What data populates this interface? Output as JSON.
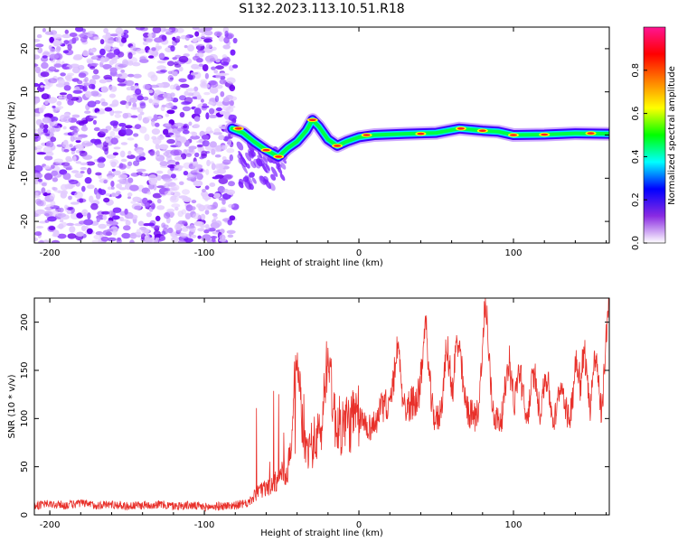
{
  "title": "S132.2023.113.10.51.R18",
  "colors": {
    "snr_line": "#e8302a",
    "axis": "#000000",
    "background": "#ffffff"
  },
  "chart_data": [
    {
      "type": "heatmap",
      "name": "spectrogram",
      "xlabel": "Height of straight line (km)",
      "ylabel": "Frequency (Hz)",
      "xlim": [
        -210,
        162
      ],
      "ylim": [
        -25,
        25
      ],
      "xticks": [
        -200,
        -100,
        0,
        100
      ],
      "yticks": [
        -20,
        -10,
        0,
        10,
        20
      ],
      "noise_region_x": [
        -210,
        -80
      ],
      "signal_track": [
        {
          "x": -82,
          "y": 1.5
        },
        {
          "x": -75,
          "y": 0.5
        },
        {
          "x": -68,
          "y": -1.5
        },
        {
          "x": -60,
          "y": -3.5
        },
        {
          "x": -52,
          "y": -5
        },
        {
          "x": -46,
          "y": -3
        },
        {
          "x": -40,
          "y": -1.5
        },
        {
          "x": -34,
          "y": 1
        },
        {
          "x": -30,
          "y": 3.5
        },
        {
          "x": -26,
          "y": 2
        },
        {
          "x": -20,
          "y": -1
        },
        {
          "x": -14,
          "y": -2.5
        },
        {
          "x": -8,
          "y": -1.5
        },
        {
          "x": 0,
          "y": -0.5
        },
        {
          "x": 10,
          "y": 0
        },
        {
          "x": 30,
          "y": 0.3
        },
        {
          "x": 50,
          "y": 0.5
        },
        {
          "x": 65,
          "y": 1.5
        },
        {
          "x": 80,
          "y": 1
        },
        {
          "x": 90,
          "y": 0.8
        },
        {
          "x": 100,
          "y": 0
        },
        {
          "x": 120,
          "y": 0.1
        },
        {
          "x": 140,
          "y": 0.4
        },
        {
          "x": 162,
          "y": 0.3
        }
      ],
      "colorbar": {
        "label": "Normalized spectral amplitude",
        "range": [
          0.0,
          1.0
        ],
        "ticks": [
          "0.0",
          "0.2",
          "0.4",
          "0.6",
          "0.8"
        ],
        "colormap": [
          "#ffffff",
          "#8a2be2",
          "#0000ff",
          "#00ffff",
          "#00ff00",
          "#ffff00",
          "#ff8000",
          "#ff0000",
          "#ff1493"
        ]
      }
    },
    {
      "type": "line",
      "name": "snr",
      "xlabel": "Height of straight line (km)",
      "ylabel": "SNR (10 * v/v)",
      "xlim": [
        -210,
        162
      ],
      "ylim": [
        0,
        225
      ],
      "xticks": [
        -200,
        -100,
        0,
        100
      ],
      "yticks": [
        0,
        50,
        100,
        150,
        200
      ],
      "series": [
        {
          "name": "SNR",
          "points": [
            [
              -210,
              10
            ],
            [
              -200,
              11
            ],
            [
              -190,
              10
            ],
            [
              -180,
              12
            ],
            [
              -170,
              10
            ],
            [
              -160,
              11
            ],
            [
              -150,
              9
            ],
            [
              -140,
              10
            ],
            [
              -130,
              11
            ],
            [
              -120,
              9
            ],
            [
              -110,
              10
            ],
            [
              -100,
              8
            ],
            [
              -90,
              9
            ],
            [
              -80,
              10
            ],
            [
              -72,
              12
            ],
            [
              -66,
              22
            ],
            [
              -60,
              28
            ],
            [
              -54,
              35
            ],
            [
              -48,
              45
            ],
            [
              -44,
              50
            ],
            [
              -40,
              55
            ],
            [
              -36,
              62
            ],
            [
              -32,
              70
            ],
            [
              -28,
              78
            ],
            [
              -24,
              80
            ],
            [
              -20,
              85
            ],
            [
              -16,
              90
            ],
            [
              -12,
              92
            ],
            [
              -8,
              95
            ],
            [
              -4,
              98
            ],
            [
              0,
              100
            ],
            [
              4,
              95
            ],
            [
              8,
              90
            ],
            [
              12,
              100
            ],
            [
              16,
              115
            ],
            [
              20,
              110
            ],
            [
              24,
              95
            ],
            [
              28,
              100
            ],
            [
              32,
              112
            ],
            [
              36,
              120
            ],
            [
              40,
              110
            ],
            [
              44,
              105
            ],
            [
              48,
              100
            ],
            [
              52,
              98
            ],
            [
              56,
              102
            ],
            [
              60,
              110
            ],
            [
              64,
              108
            ],
            [
              68,
              112
            ],
            [
              72,
              105
            ],
            [
              76,
              100
            ],
            [
              80,
              110
            ],
            [
              84,
              104
            ],
            [
              88,
              100
            ],
            [
              92,
              96
            ],
            [
              96,
              98
            ],
            [
              100,
              100
            ],
            [
              104,
              98
            ],
            [
              108,
              92
            ],
            [
              112,
              96
            ],
            [
              116,
              100
            ],
            [
              120,
              95
            ],
            [
              124,
              96
            ],
            [
              128,
              93
            ],
            [
              132,
              92
            ],
            [
              136,
              95
            ],
            [
              140,
              96
            ],
            [
              144,
              98
            ],
            [
              148,
              90
            ],
            [
              152,
              88
            ],
            [
              156,
              85
            ],
            [
              160,
              110
            ],
            [
              162,
              160
            ]
          ],
          "spikes": [
            [
              -40,
              175
            ],
            [
              -20,
              175
            ],
            [
              25,
              180
            ],
            [
              43,
              200
            ],
            [
              57,
              175
            ],
            [
              64,
              190
            ],
            [
              82,
              225
            ],
            [
              97,
              165
            ],
            [
              104,
              155
            ],
            [
              113,
              150
            ],
            [
              121,
              150
            ],
            [
              131,
              140
            ],
            [
              141,
              170
            ],
            [
              146,
              175
            ],
            [
              153,
              175
            ],
            [
              161,
              225
            ]
          ]
        }
      ]
    }
  ]
}
